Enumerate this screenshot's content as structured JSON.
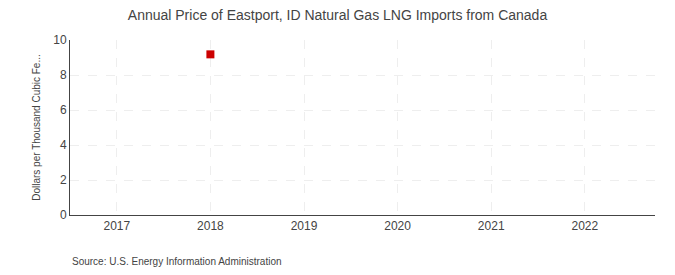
{
  "chart_data": {
    "type": "scatter",
    "title": "Annual Price of Eastport, ID Natural Gas LNG Imports from Canada",
    "ylabel": "Dollars per Thousand Cubic Fe...",
    "annotations": [
      "Source: U.S. Energy Information Administration"
    ],
    "x": [
      2018
    ],
    "values": [
      9.18
    ],
    "color": "#cc0000",
    "marker": "square",
    "xlim": [
      2016.5,
      2022.75
    ],
    "xticks": [
      2017,
      2018,
      2019,
      2020,
      2021,
      2022
    ],
    "ylim": [
      0,
      10
    ],
    "yticks": [
      0,
      2,
      4,
      6,
      8,
      10
    ],
    "grid": true
  }
}
